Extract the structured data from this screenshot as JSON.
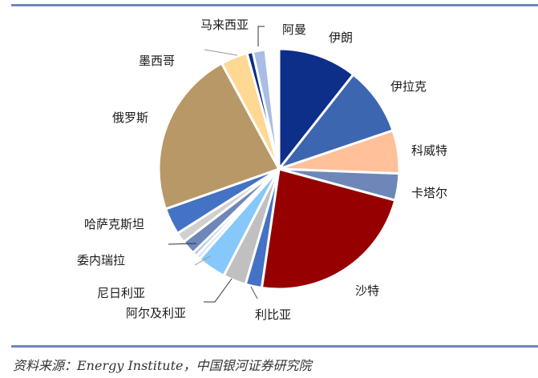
{
  "chart_data": {
    "type": "pie",
    "title": "",
    "start_angle_deg": 0,
    "direction": "clockwise",
    "center": [
      348,
      211
    ],
    "radius": 150,
    "slices": [
      {
        "name": "伊朗",
        "value": 10.6,
        "color": "#0d2f8a",
        "label": "伊朗"
      },
      {
        "name": "伊拉克",
        "value": 9.2,
        "color": "#3d66b0",
        "label": "伊拉克"
      },
      {
        "name": "科威特",
        "value": 5.8,
        "color": "#ffc09a",
        "label": "科威特"
      },
      {
        "name": "卡塔尔",
        "value": 3.6,
        "color": "#6e87b8",
        "label": "卡塔尔"
      },
      {
        "name": "沙特",
        "value": 23.1,
        "color": "#960000",
        "label": "沙特"
      },
      {
        "name": "利比亚",
        "value": 2.2,
        "color": "#4472c4",
        "label": "利比亚"
      },
      {
        "name": "阿尔及利亚",
        "value": 3.1,
        "color": "#c0c0c0",
        "label": "阿尔及利亚"
      },
      {
        "name": "尼日利亚",
        "value": 3.9,
        "color": "#87c8fb",
        "label": "尼日利亚"
      },
      {
        "name": "其他A",
        "value": 0.6,
        "color": "#d9e4f5",
        "label": ""
      },
      {
        "name": "其他B",
        "value": 0.6,
        "color": "#b4c7e7",
        "label": ""
      },
      {
        "name": "委内瑞拉",
        "value": 1.9,
        "color": "#6e87b8",
        "label": "委内瑞拉"
      },
      {
        "name": "其他C",
        "value": 1.4,
        "color": "#d0d0d0",
        "label": ""
      },
      {
        "name": "哈萨克斯坦",
        "value": 3.6,
        "color": "#4472c4",
        "label": "哈萨克斯坦"
      },
      {
        "name": "俄罗斯",
        "value": 22.5,
        "color": "#b99868",
        "label": "俄罗斯"
      },
      {
        "name": "墨西哥",
        "value": 3.6,
        "color": "#ffd894",
        "label": "墨西哥"
      },
      {
        "name": "马来西亚",
        "value": 0.8,
        "color": "#0d2f8a",
        "label": "马来西亚"
      },
      {
        "name": "阿曼",
        "value": 1.7,
        "color": "#a9bde5",
        "label": "阿曼"
      },
      {
        "name": "空白",
        "value": 1.8,
        "color": "#ffffff",
        "label": ""
      }
    ],
    "legend": "none (direct labels)"
  },
  "labels": {
    "iran": "伊朗",
    "iraq": "伊拉克",
    "kuwait": "科威特",
    "qatar": "卡塔尔",
    "saudi": "沙特",
    "libya": "利比亚",
    "algeria": "阿尔及利亚",
    "nigeria": "尼日利亚",
    "venezuela": "委内瑞拉",
    "kazakhstan": "哈萨克斯坦",
    "russia": "俄罗斯",
    "mexico": "墨西哥",
    "malaysia": "马来西亚",
    "oman": "阿曼"
  },
  "source": "资料来源：Energy Institute，中国银河证券研究院"
}
